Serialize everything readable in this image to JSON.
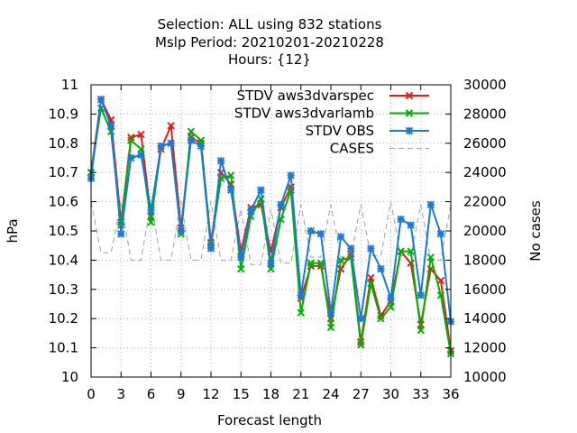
{
  "chart_data": {
    "type": "line",
    "title_lines": [
      "Selection: ALL using   832 stations",
      "Mslp   Period: 20210201-20210228",
      "Hours: {12}"
    ],
    "xlabel": "Forecast length",
    "ylabel": "hPa",
    "y2label": "No cases",
    "xlim": [
      0,
      36
    ],
    "ylim": [
      10,
      11
    ],
    "y2lim": [
      10000,
      30000
    ],
    "xticks": [
      0,
      3,
      6,
      9,
      12,
      15,
      18,
      21,
      24,
      27,
      30,
      33,
      36
    ],
    "yticks": [
      10,
      10.1,
      10.2,
      10.3,
      10.4,
      10.5,
      10.6,
      10.7,
      10.8,
      10.9,
      11
    ],
    "ytick_labels": [
      "10",
      "10.1",
      "10.2",
      "10.3",
      "10.4",
      "10.5",
      "10.6",
      "10.7",
      "10.8",
      "10.9",
      "11"
    ],
    "y2ticks": [
      10000,
      12000,
      14000,
      16000,
      18000,
      20000,
      22000,
      24000,
      26000,
      28000,
      30000
    ],
    "grid": true,
    "legend_position": "top-right",
    "x": [
      0,
      1,
      2,
      3,
      4,
      5,
      6,
      7,
      8,
      9,
      10,
      11,
      12,
      13,
      14,
      15,
      16,
      17,
      18,
      19,
      20,
      21,
      22,
      23,
      24,
      25,
      26,
      27,
      28,
      29,
      30,
      31,
      32,
      33,
      34,
      35,
      36
    ],
    "series": [
      {
        "name": "STDV aws3dvarspec",
        "color": "#e51c1c",
        "axis": "y",
        "style": "solid-marker-x",
        "values": [
          10.7,
          10.95,
          10.88,
          10.53,
          10.82,
          10.83,
          10.55,
          10.78,
          10.86,
          10.51,
          10.82,
          10.8,
          10.46,
          10.7,
          10.66,
          10.43,
          10.58,
          10.59,
          10.43,
          10.58,
          10.65,
          10.27,
          10.38,
          10.38,
          10.2,
          10.37,
          10.42,
          10.12,
          10.34,
          10.21,
          10.26,
          10.43,
          10.39,
          10.18,
          10.37,
          10.33,
          10.09
        ]
      },
      {
        "name": "STDV aws3dvarlamb",
        "color": "#00b000",
        "axis": "y",
        "style": "solid-marker-x",
        "values": [
          10.7,
          10.92,
          10.84,
          10.52,
          10.81,
          10.78,
          10.53,
          10.79,
          10.8,
          10.49,
          10.84,
          10.81,
          10.45,
          10.68,
          10.69,
          10.37,
          10.55,
          10.61,
          10.37,
          10.54,
          10.64,
          10.22,
          10.39,
          10.39,
          10.17,
          10.4,
          10.41,
          10.11,
          10.32,
          10.2,
          10.24,
          10.43,
          10.43,
          10.16,
          10.41,
          10.28,
          10.08
        ]
      },
      {
        "name": "STDV OBS",
        "color": "#1a7ad6",
        "axis": "y",
        "style": "solid-marker-star",
        "values": [
          10.68,
          10.95,
          10.86,
          10.49,
          10.75,
          10.76,
          10.57,
          10.79,
          10.8,
          10.5,
          10.81,
          10.79,
          10.44,
          10.74,
          10.64,
          10.41,
          10.57,
          10.64,
          10.39,
          10.59,
          10.69,
          10.28,
          10.5,
          10.49,
          10.22,
          10.48,
          10.44,
          10.2,
          10.44,
          10.37,
          10.27,
          10.54,
          10.52,
          10.28,
          10.59,
          10.49,
          10.19
        ]
      },
      {
        "name": "CASES",
        "color": "#a0a0a0",
        "axis": "y2",
        "style": "dashed",
        "values": [
          22000,
          18500,
          18500,
          22000,
          18000,
          18000,
          22000,
          18000,
          18000,
          22000,
          18000,
          18000,
          22000,
          18000,
          18000,
          21500,
          17700,
          17700,
          21500,
          17800,
          17800,
          21800,
          18200,
          18200,
          21800,
          18200,
          18300,
          21800,
          18300,
          18300,
          22000,
          18300,
          18300,
          21800,
          18000,
          18000,
          21800
        ]
      }
    ]
  }
}
